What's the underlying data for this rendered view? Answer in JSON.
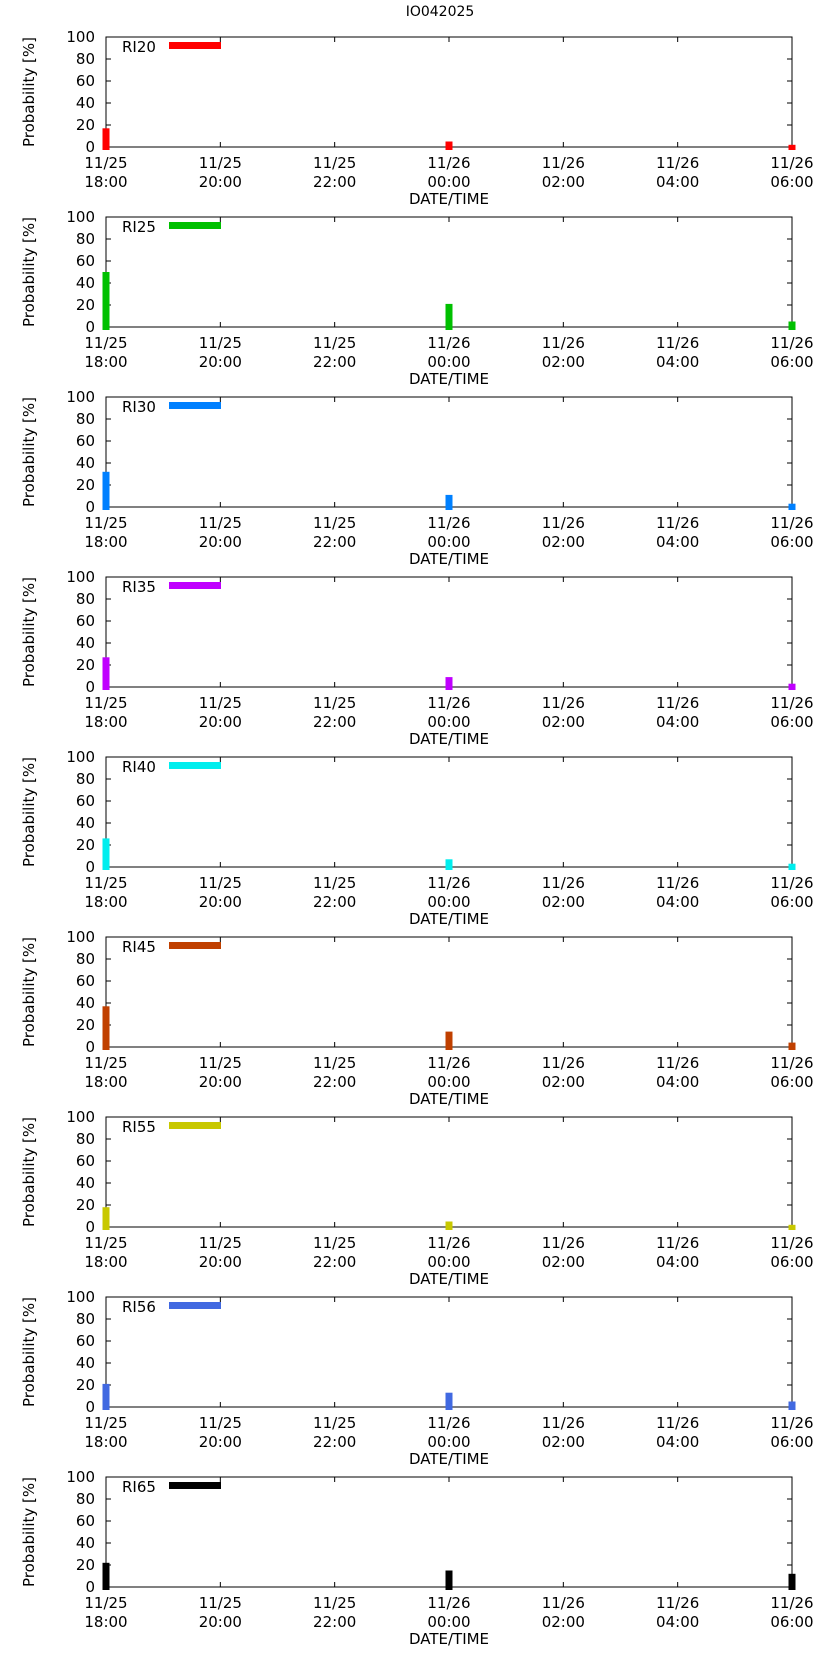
{
  "title": "IO042025",
  "chart_data": {
    "type": "bar",
    "title": "IO042025",
    "ylabel": "Probability [%]",
    "xlabel": "DATE/TIME",
    "ylim": [
      0,
      100
    ],
    "yticks": [
      0,
      20,
      40,
      60,
      80,
      100
    ],
    "x_hours": [
      0,
      2,
      4,
      6,
      8,
      10,
      12
    ],
    "x_tick_labels": [
      [
        "11/25",
        "18:00"
      ],
      [
        "11/25",
        "20:00"
      ],
      [
        "11/25",
        "22:00"
      ],
      [
        "11/26",
        "00:00"
      ],
      [
        "11/26",
        "02:00"
      ],
      [
        "11/26",
        "04:00"
      ],
      [
        "11/26",
        "06:00"
      ]
    ],
    "categories_hours": [
      0,
      6,
      12
    ],
    "panels": [
      {
        "name": "RI20",
        "color": "#ff0000",
        "values": [
          17,
          5,
          2
        ]
      },
      {
        "name": "RI25",
        "color": "#00c000",
        "values": [
          50,
          21,
          5
        ]
      },
      {
        "name": "RI30",
        "color": "#0080ff",
        "values": [
          32,
          11,
          3
        ]
      },
      {
        "name": "RI35",
        "color": "#c000ff",
        "values": [
          27,
          9,
          3
        ]
      },
      {
        "name": "RI40",
        "color": "#00eeee",
        "values": [
          26,
          7,
          3
        ]
      },
      {
        "name": "RI45",
        "color": "#c04000",
        "values": [
          37,
          14,
          4
        ]
      },
      {
        "name": "RI55",
        "color": "#c8c800",
        "values": [
          18,
          5,
          2
        ]
      },
      {
        "name": "RI56",
        "color": "#4169e1",
        "values": [
          21,
          13,
          5
        ]
      },
      {
        "name": "RI65",
        "color": "#000000",
        "values": [
          22,
          15,
          12
        ]
      }
    ]
  }
}
